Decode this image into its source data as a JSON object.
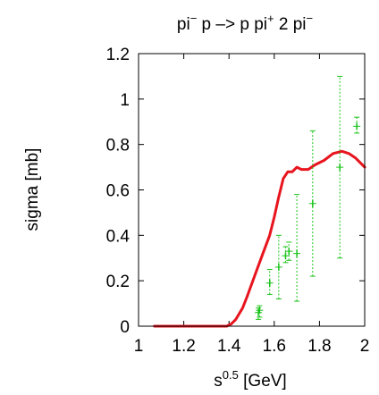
{
  "chart_data": {
    "type": "line",
    "title": {
      "p1": "pi",
      "s1": "−",
      "p2": " p –> p pi",
      "s2": "+",
      "p3": " 2 pi",
      "s3": "−"
    },
    "xlabel": {
      "base": "s",
      "sup": "0.5",
      "rest": " [GeV]"
    },
    "ylabel": "sigma [mb]",
    "xlim": [
      1.0,
      2.0
    ],
    "ylim": [
      0.0,
      1.2
    ],
    "xticks": [
      1.0,
      1.2,
      1.4,
      1.6,
      1.8,
      2.0
    ],
    "xtick_labels": [
      "1",
      "1.2",
      "1.4",
      "1.6",
      "1.8",
      "2"
    ],
    "yticks": [
      0.0,
      0.2,
      0.4,
      0.6,
      0.8,
      1.0,
      1.2
    ],
    "ytick_labels": [
      "0",
      "0.2",
      "0.4",
      "0.6",
      "0.8",
      "1",
      "1.2"
    ],
    "grid": false,
    "series": [
      {
        "kind": "line",
        "color": "#e8141e",
        "x": [
          1.07,
          1.39,
          1.41,
          1.43,
          1.46,
          1.48,
          1.52,
          1.55,
          1.58,
          1.6,
          1.62,
          1.64,
          1.66,
          1.68,
          1.7,
          1.72,
          1.75,
          1.78,
          1.82,
          1.86,
          1.9,
          1.93,
          1.96,
          2.0
        ],
        "y": [
          0.0,
          0.0,
          0.01,
          0.03,
          0.08,
          0.13,
          0.24,
          0.32,
          0.4,
          0.48,
          0.57,
          0.65,
          0.68,
          0.68,
          0.7,
          0.69,
          0.69,
          0.71,
          0.73,
          0.76,
          0.77,
          0.76,
          0.74,
          0.7
        ]
      },
      {
        "kind": "errorbar",
        "color": "#19c319",
        "x": [
          1.53,
          1.535,
          1.58,
          1.62,
          1.65,
          1.665,
          1.7,
          1.77,
          1.89,
          1.965
        ],
        "y": [
          0.06,
          0.07,
          0.19,
          0.26,
          0.31,
          0.33,
          0.32,
          0.54,
          0.7,
          0.88
        ],
        "yerr_low": [
          0.03,
          0.03,
          0.05,
          0.14,
          0.03,
          0.04,
          0.21,
          0.32,
          0.4,
          0.03
        ],
        "yerr_high": [
          0.02,
          0.02,
          0.06,
          0.14,
          0.04,
          0.04,
          0.26,
          0.32,
          0.4,
          0.04
        ]
      }
    ]
  }
}
